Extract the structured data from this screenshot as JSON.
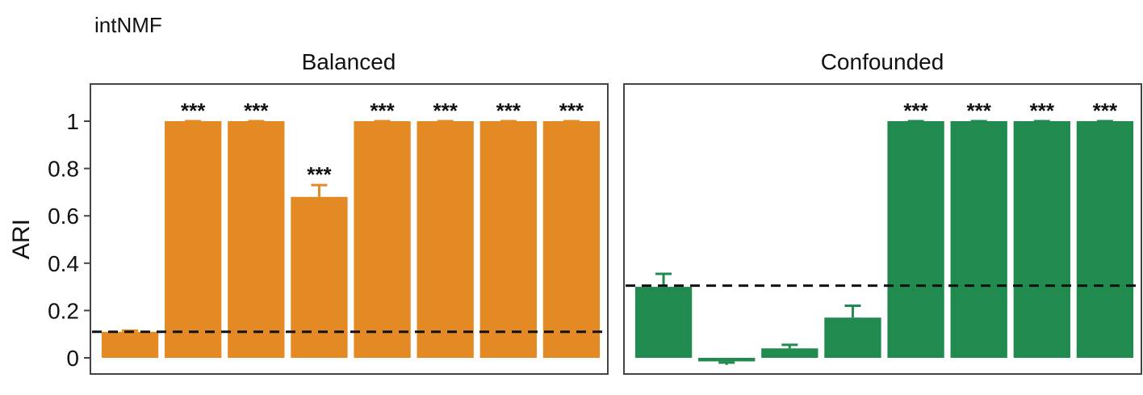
{
  "figure_title": "intNMF",
  "colors": {
    "balanced": "#E38A25",
    "confounded": "#218A4E",
    "reference_line": "#111111"
  },
  "chart_data": [
    {
      "type": "bar",
      "title": "Balanced",
      "ylabel": "ARI",
      "ylim": [
        -0.03,
        1.1
      ],
      "yticks": [
        "0",
        "0.2",
        "0.4",
        "0.6",
        "0.8",
        "1"
      ],
      "grid": false,
      "reference_line": 0.11,
      "values": [
        0.11,
        1.0,
        1.0,
        0.68,
        1.0,
        1.0,
        1.0,
        1.0
      ],
      "error_upper": [
        0.115,
        1.0,
        1.0,
        0.73,
        1.0,
        1.0,
        1.0,
        1.0
      ],
      "annotations": [
        "",
        "***",
        "***",
        "***",
        "***",
        "***",
        "***",
        "***"
      ]
    },
    {
      "type": "bar",
      "title": "Confounded",
      "ylim": [
        -0.03,
        1.1
      ],
      "grid": false,
      "reference_line": 0.305,
      "values": [
        0.3,
        -0.015,
        0.04,
        0.17,
        1.0,
        1.0,
        1.0,
        1.0
      ],
      "error_upper": [
        0.355,
        -0.02,
        0.055,
        0.22,
        1.0,
        1.0,
        1.0,
        1.0
      ],
      "annotations": [
        "",
        "",
        "",
        "",
        "***",
        "***",
        "***",
        "***"
      ]
    }
  ]
}
